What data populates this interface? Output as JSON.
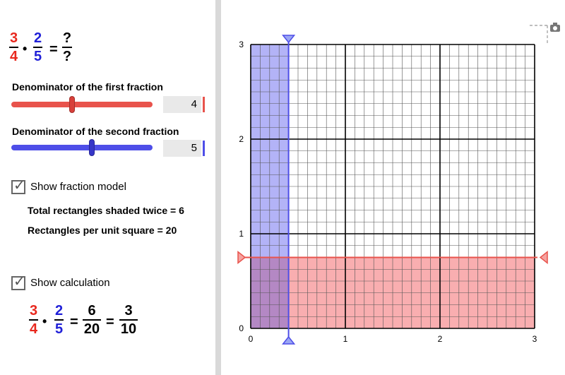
{
  "header_formula": {
    "fraction1": {
      "numerator": "3",
      "denominator": "4"
    },
    "operator": "•",
    "fraction2": {
      "numerator": "2",
      "denominator": "5"
    },
    "equals": "=",
    "result": {
      "numerator": "?",
      "denominator": "?"
    }
  },
  "slider1": {
    "label": "Denominator of the first fraction",
    "value": "4",
    "level": 0.43,
    "color": "#e8534c"
  },
  "slider2": {
    "label": "Denominator of the second fraction",
    "value": "5",
    "level": 0.57,
    "color": "#4e4ee8"
  },
  "show_fraction_model": {
    "label": "Show fraction model",
    "checked": true,
    "check": "✓"
  },
  "info": {
    "shaded_twice": "Total rectangles shaded twice = 6",
    "per_unit_square": "Rectangles per unit square = 20"
  },
  "show_calculation": {
    "label": "Show calculation",
    "checked": true,
    "check": "✓"
  },
  "calculation": {
    "fraction1": {
      "numerator": "3",
      "denominator": "4"
    },
    "operator": "•",
    "fraction2": {
      "numerator": "2",
      "denominator": "5"
    },
    "equals1": "=",
    "product": {
      "numerator": "6",
      "denominator": "20"
    },
    "equals2": "=",
    "simplified": {
      "numerator": "3",
      "denominator": "10"
    }
  },
  "graph": {
    "x_ticks": [
      "0",
      "1",
      "2",
      "3"
    ],
    "y_ticks": [
      "0",
      "1",
      "2",
      "3"
    ],
    "x_range": [
      0,
      3
    ],
    "y_range": [
      0,
      3
    ],
    "vertical_line_x": 0.4,
    "horizontal_line_y": 0.75,
    "minor_divisions_x": 10,
    "minor_divisions_y": 8,
    "colors": {
      "red": "#e8534c",
      "blue": "#4e4ee8",
      "red_fill": "#f9aeb0",
      "blue_fill": "#b3b3f7",
      "overlap_fill": "#b488c4"
    },
    "camera_icon": "camera-icon"
  }
}
